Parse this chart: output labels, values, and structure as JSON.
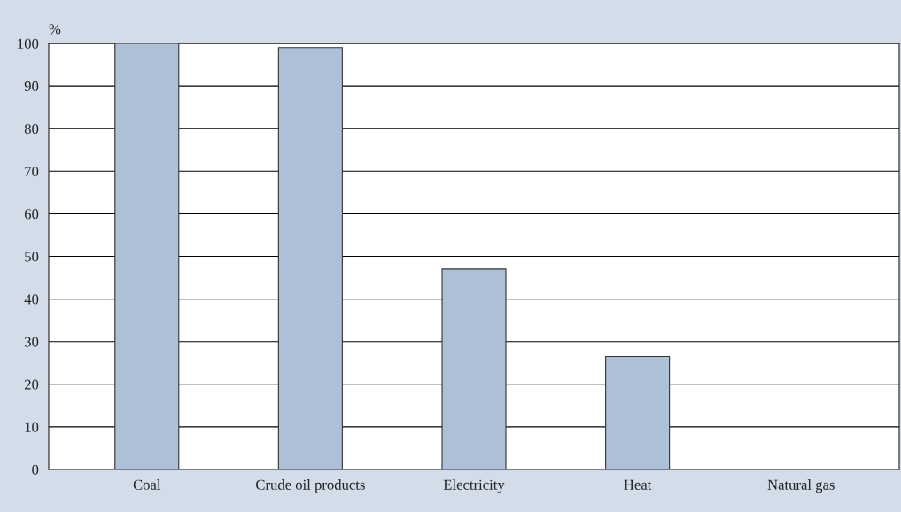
{
  "chart_data": {
    "type": "bar",
    "ylabel": "%",
    "categories": [
      "Coal",
      "Crude oil products",
      "Electricity",
      "Heat",
      "Natural gas"
    ],
    "values": [
      100,
      99,
      47,
      26.5,
      0
    ],
    "color": "#aebfd8",
    "ylim": [
      0,
      100
    ],
    "yticks": [
      0,
      10,
      20,
      30,
      40,
      50,
      60,
      70,
      80,
      90,
      100
    ],
    "grid": "y"
  }
}
